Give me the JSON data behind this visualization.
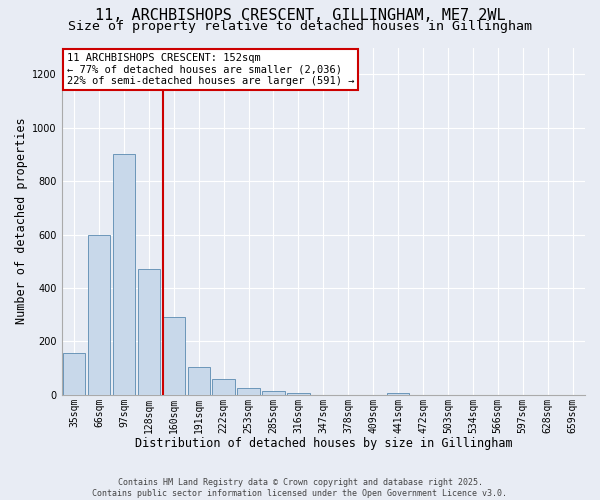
{
  "title_line1": "11, ARCHBISHOPS CRESCENT, GILLINGHAM, ME7 2WL",
  "title_line2": "Size of property relative to detached houses in Gillingham",
  "xlabel": "Distribution of detached houses by size in Gillingham",
  "ylabel": "Number of detached properties",
  "annotation_line1": "11 ARCHBISHOPS CRESCENT: 152sqm",
  "annotation_line2": "← 77% of detached houses are smaller (2,036)",
  "annotation_line3": "22% of semi-detached houses are larger (591) →",
  "footnote1": "Contains HM Land Registry data © Crown copyright and database right 2025.",
  "footnote2": "Contains public sector information licensed under the Open Government Licence v3.0.",
  "bar_color": "#c8d8ea",
  "bar_edge_color": "#5a8ab0",
  "vline_color": "#cc0000",
  "background_color": "#e8ecf4",
  "plot_bg_color": "#e8ecf4",
  "grid_color": "#ffffff",
  "annotation_box_color": "#ffffff",
  "annotation_box_edge": "#cc0000",
  "categories": [
    "35sqm",
    "66sqm",
    "97sqm",
    "128sqm",
    "160sqm",
    "191sqm",
    "222sqm",
    "253sqm",
    "285sqm",
    "316sqm",
    "347sqm",
    "378sqm",
    "409sqm",
    "441sqm",
    "472sqm",
    "503sqm",
    "534sqm",
    "566sqm",
    "597sqm",
    "628sqm",
    "659sqm"
  ],
  "values": [
    155,
    600,
    900,
    470,
    290,
    105,
    58,
    27,
    15,
    5,
    0,
    0,
    0,
    7,
    0,
    0,
    0,
    0,
    0,
    0,
    0
  ],
  "ylim": [
    0,
    1300
  ],
  "yticks": [
    0,
    200,
    400,
    600,
    800,
    1000,
    1200
  ],
  "vline_x": 3.58,
  "title_fontsize": 11,
  "subtitle_fontsize": 9.5,
  "axis_label_fontsize": 8.5,
  "tick_fontsize": 7,
  "annot_fontsize": 7.5,
  "footnote_fontsize": 6
}
